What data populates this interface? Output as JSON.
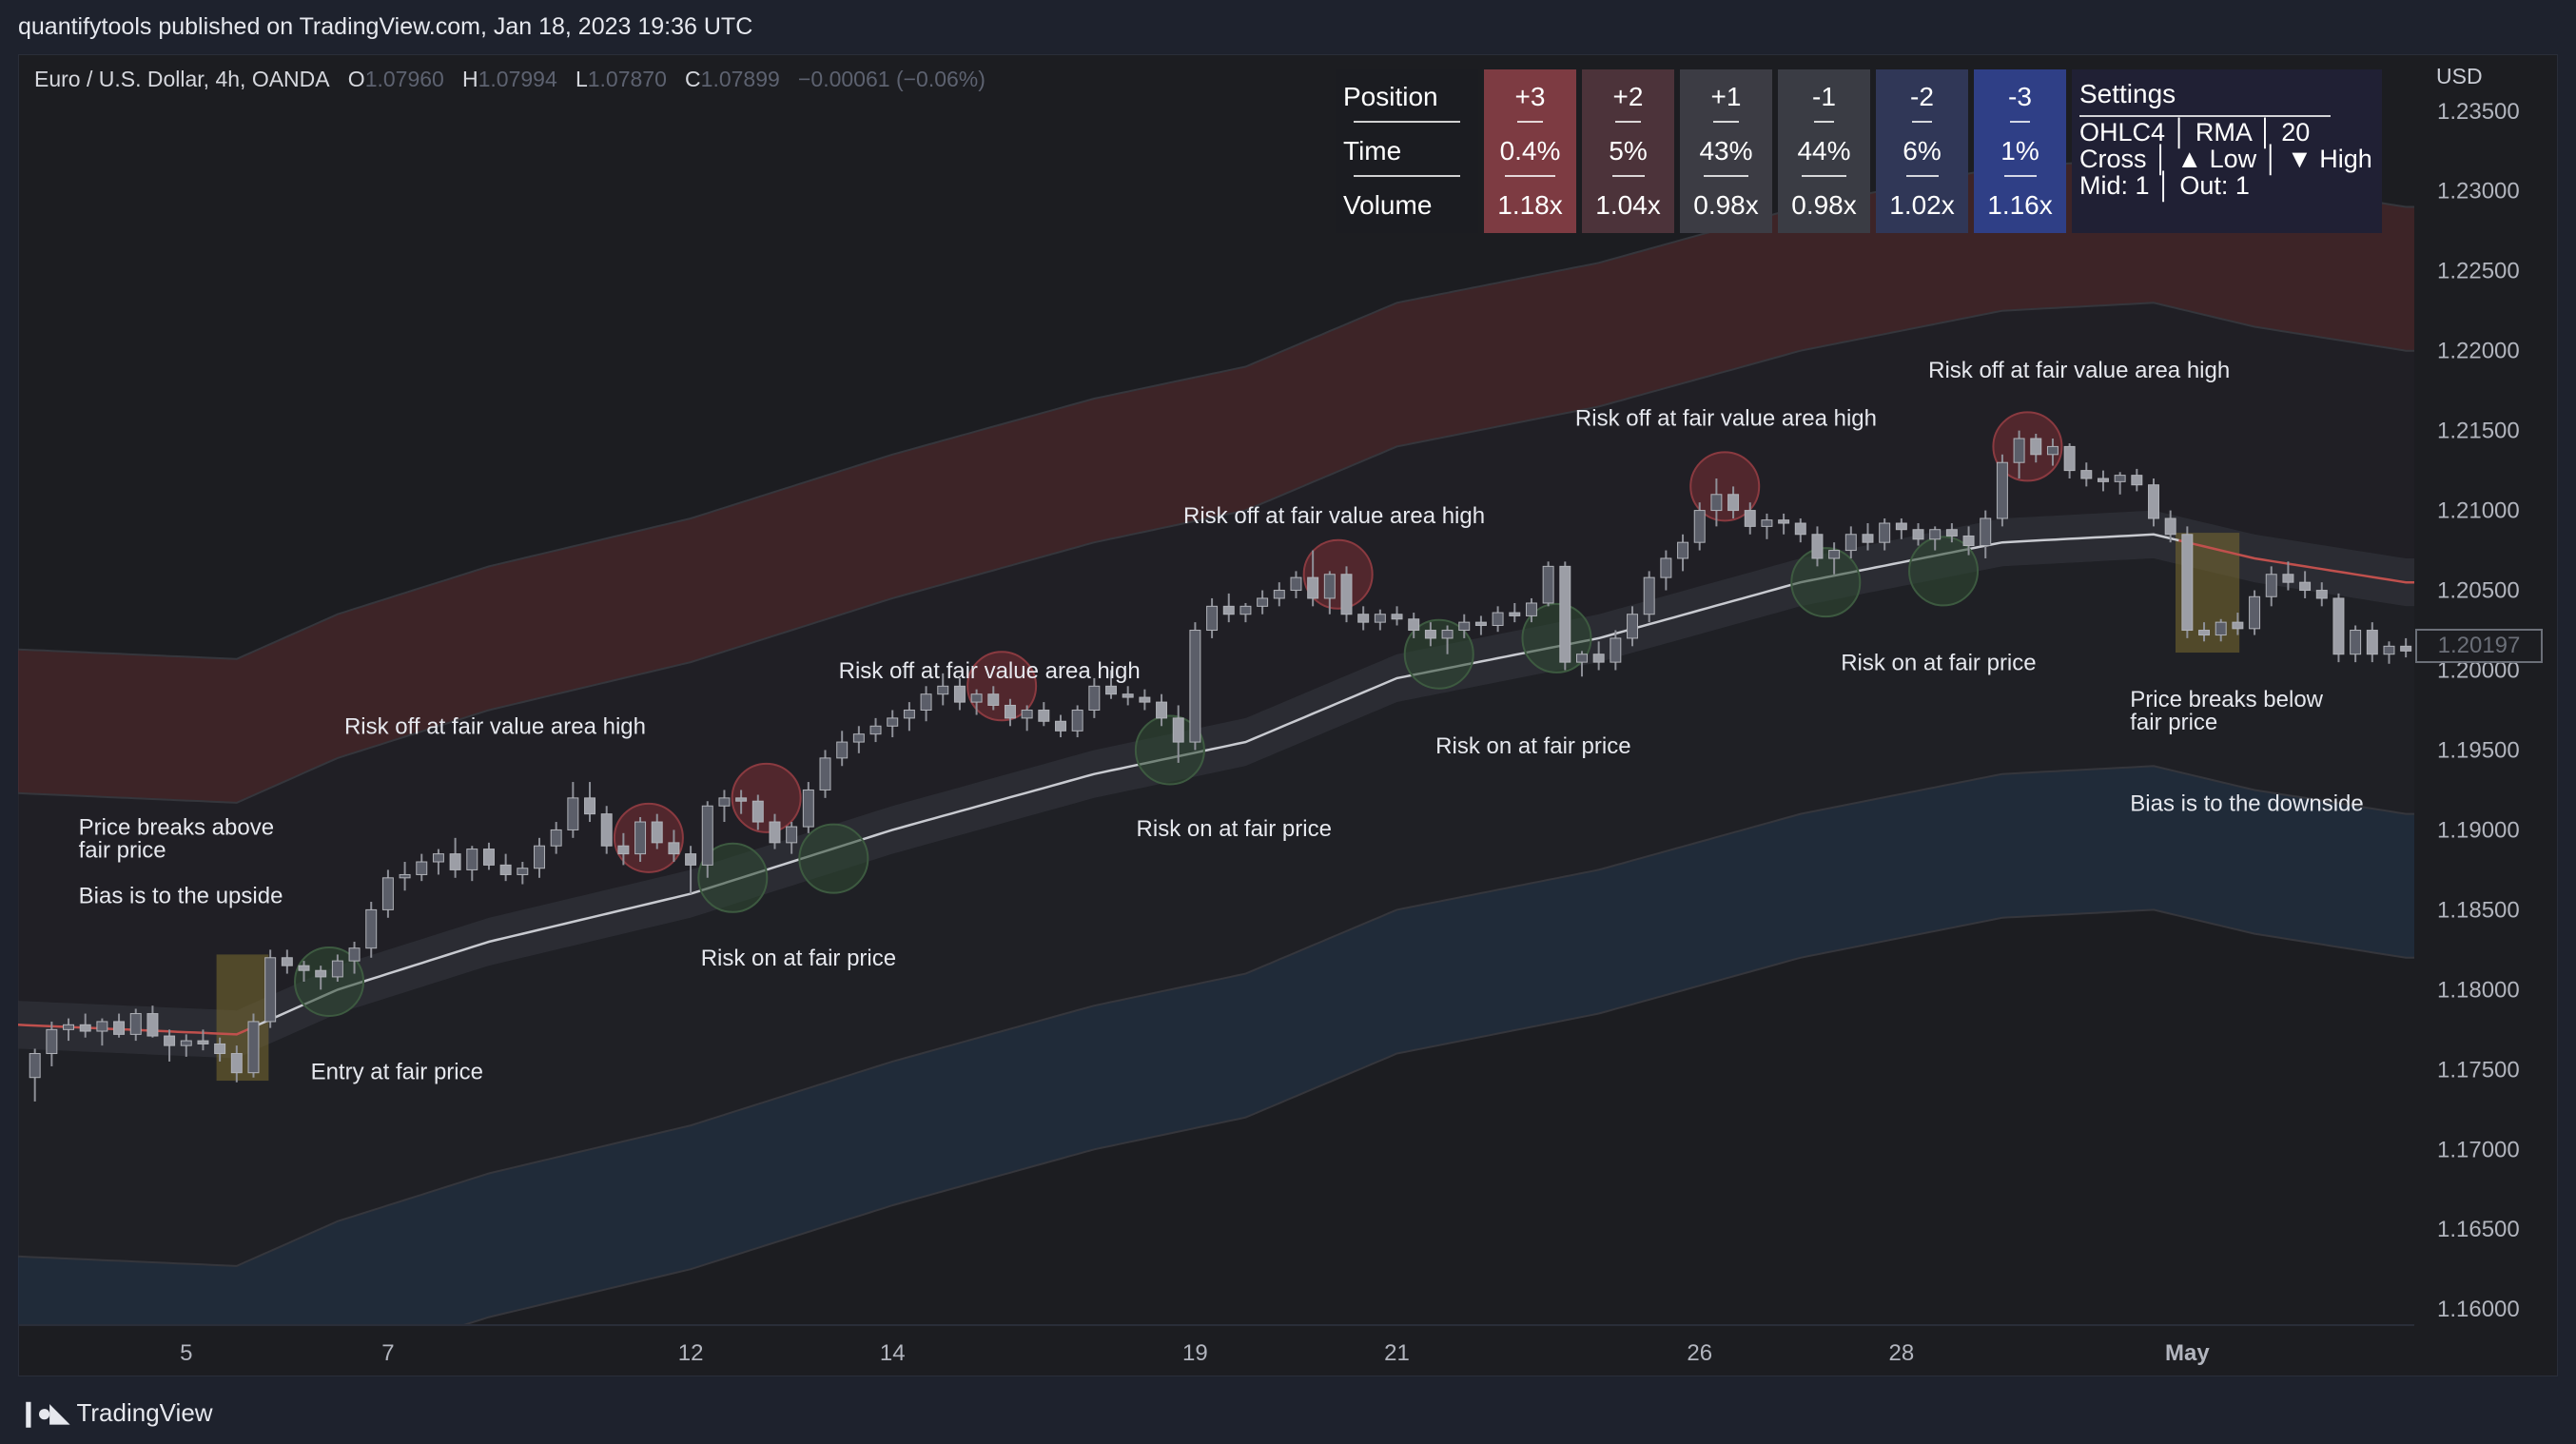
{
  "header": {
    "text": "quantifytools published on TradingView.com, Jan 18, 2023 19:36 UTC"
  },
  "legend": {
    "symbol": "Euro / U.S. Dollar, 4h, OANDA",
    "o_label": "O",
    "o_value": "1.07960",
    "h_label": "H",
    "h_value": "1.07994",
    "l_label": "L",
    "l_value": "1.07870",
    "c_label": "C",
    "c_value": "1.07899",
    "change": "−0.00061 (−0.06%)"
  },
  "currency": "USD",
  "footer": {
    "brand": "TradingView"
  },
  "stats_table": {
    "row_labels": [
      "Position",
      "Time",
      "Volume"
    ],
    "columns": [
      {
        "position": "+3",
        "time": "0.4%",
        "volume": "1.18x",
        "color": "#7d3b42"
      },
      {
        "position": "+2",
        "time": "5%",
        "volume": "1.04x",
        "color": "#4c333a"
      },
      {
        "position": "+1",
        "time": "43%",
        "volume": "0.98x",
        "color": "#3c3c44"
      },
      {
        "position": "-1",
        "time": "44%",
        "volume": "0.98x",
        "color": "#3a3c44"
      },
      {
        "position": "-2",
        "time": "6%",
        "volume": "1.02x",
        "color": "#303757"
      },
      {
        "position": "-3",
        "time": "1%",
        "volume": "1.16x",
        "color": "#2f3f86"
      }
    ],
    "settings": {
      "title": "Settings",
      "line1": "OHLC4 │ RMA │ 20",
      "line2": "Cross │ ▲ Low │ ▼ High",
      "line3": "Mid: 1 │ Out: 1"
    }
  },
  "price_tag": "1.20197",
  "chart_data": {
    "type": "candlestick",
    "title": "Euro / U.S. Dollar, 4h, OANDA",
    "ylim": [
      1.159,
      1.2385
    ],
    "y_ticks": [
      "1.16000",
      "1.16500",
      "1.17000",
      "1.17500",
      "1.18000",
      "1.18500",
      "1.19000",
      "1.19500",
      "1.20000",
      "1.20500",
      "1.21000",
      "1.21500",
      "1.22000",
      "1.22500",
      "1.23000",
      "1.23500"
    ],
    "x_ticks": [
      {
        "label": "5",
        "t": 9,
        "bold": false
      },
      {
        "label": "7",
        "t": 21,
        "bold": false
      },
      {
        "label": "12",
        "t": 39,
        "bold": false
      },
      {
        "label": "14",
        "t": 51,
        "bold": false
      },
      {
        "label": "19",
        "t": 69,
        "bold": false
      },
      {
        "label": "21",
        "t": 81,
        "bold": false
      },
      {
        "label": "26",
        "t": 99,
        "bold": false
      },
      {
        "label": "28",
        "t": 111,
        "bold": false
      },
      {
        "label": "May",
        "t": 128,
        "bold": true
      }
    ],
    "x_range": [
      -1,
      141.5
    ],
    "fair_price_anchors": [
      [
        -1,
        1.1778
      ],
      [
        12,
        1.1772
      ],
      [
        18,
        1.18
      ],
      [
        27,
        1.183
      ],
      [
        39,
        1.186
      ],
      [
        51,
        1.19
      ],
      [
        63,
        1.1935
      ],
      [
        72,
        1.1955
      ],
      [
        81,
        1.1995
      ],
      [
        93,
        1.202
      ],
      [
        105,
        1.2055
      ],
      [
        117,
        1.208
      ],
      [
        126,
        1.2085
      ],
      [
        132,
        1.207
      ],
      [
        141,
        1.2055
      ]
    ],
    "candles": [
      [
        1.1745,
        1.1763,
        1.173,
        1.176
      ],
      [
        1.176,
        1.178,
        1.1752,
        1.1775
      ],
      [
        1.1775,
        1.1782,
        1.1768,
        1.1778
      ],
      [
        1.1778,
        1.1785,
        1.177,
        1.1774
      ],
      [
        1.1774,
        1.1782,
        1.1765,
        1.178
      ],
      [
        1.178,
        1.1785,
        1.177,
        1.1772
      ],
      [
        1.1772,
        1.1788,
        1.1768,
        1.1785
      ],
      [
        1.1785,
        1.179,
        1.177,
        1.1771
      ],
      [
        1.1771,
        1.1775,
        1.1755,
        1.1765
      ],
      [
        1.1765,
        1.1772,
        1.1758,
        1.1768
      ],
      [
        1.1768,
        1.1775,
        1.1762,
        1.1766
      ],
      [
        1.1766,
        1.177,
        1.1755,
        1.176
      ],
      [
        1.176,
        1.1765,
        1.1742,
        1.1748
      ],
      [
        1.1748,
        1.1785,
        1.1745,
        1.178
      ],
      [
        1.178,
        1.1825,
        1.1776,
        1.182
      ],
      [
        1.182,
        1.1825,
        1.181,
        1.1815
      ],
      [
        1.1815,
        1.1818,
        1.1805,
        1.1812
      ],
      [
        1.1812,
        1.1815,
        1.18,
        1.1808
      ],
      [
        1.1808,
        1.1822,
        1.1805,
        1.1818
      ],
      [
        1.1818,
        1.183,
        1.181,
        1.1826
      ],
      [
        1.1826,
        1.1855,
        1.182,
        1.185
      ],
      [
        1.185,
        1.1875,
        1.1845,
        1.187
      ],
      [
        1.187,
        1.188,
        1.1862,
        1.1872
      ],
      [
        1.1872,
        1.1885,
        1.1868,
        1.188
      ],
      [
        1.188,
        1.1888,
        1.1872,
        1.1885
      ],
      [
        1.1885,
        1.1895,
        1.187,
        1.1875
      ],
      [
        1.1875,
        1.189,
        1.1868,
        1.1888
      ],
      [
        1.1888,
        1.1892,
        1.1875,
        1.1878
      ],
      [
        1.1878,
        1.1885,
        1.1868,
        1.1872
      ],
      [
        1.1872,
        1.188,
        1.1866,
        1.1876
      ],
      [
        1.1876,
        1.1895,
        1.187,
        1.189
      ],
      [
        1.189,
        1.1905,
        1.1885,
        1.19
      ],
      [
        1.19,
        1.193,
        1.1895,
        1.192
      ],
      [
        1.192,
        1.193,
        1.1905,
        1.191
      ],
      [
        1.191,
        1.1915,
        1.1885,
        1.189
      ],
      [
        1.189,
        1.1898,
        1.1878,
        1.1885
      ],
      [
        1.1885,
        1.1908,
        1.188,
        1.1905
      ],
      [
        1.1905,
        1.191,
        1.1888,
        1.1892
      ],
      [
        1.1892,
        1.19,
        1.188,
        1.1885
      ],
      [
        1.1885,
        1.189,
        1.186,
        1.1878
      ],
      [
        1.1878,
        1.1918,
        1.187,
        1.1915
      ],
      [
        1.1915,
        1.1925,
        1.1905,
        1.192
      ],
      [
        1.192,
        1.1925,
        1.191,
        1.1918
      ],
      [
        1.1918,
        1.1922,
        1.19,
        1.1905
      ],
      [
        1.1905,
        1.191,
        1.1888,
        1.1892
      ],
      [
        1.1892,
        1.1905,
        1.1885,
        1.1902
      ],
      [
        1.1902,
        1.193,
        1.1898,
        1.1925
      ],
      [
        1.1925,
        1.195,
        1.192,
        1.1945
      ],
      [
        1.1945,
        1.1962,
        1.194,
        1.1955
      ],
      [
        1.1955,
        1.1965,
        1.1948,
        1.196
      ],
      [
        1.196,
        1.197,
        1.1955,
        1.1965
      ],
      [
        1.1965,
        1.1975,
        1.1958,
        1.197
      ],
      [
        1.197,
        1.198,
        1.1962,
        1.1975
      ],
      [
        1.1975,
        1.199,
        1.1968,
        1.1985
      ],
      [
        1.1985,
        1.1998,
        1.1978,
        1.199
      ],
      [
        1.199,
        1.1995,
        1.1975,
        1.198
      ],
      [
        1.198,
        1.1988,
        1.1972,
        1.1985
      ],
      [
        1.1985,
        1.199,
        1.1975,
        1.1978
      ],
      [
        1.1978,
        1.1982,
        1.1965,
        1.197
      ],
      [
        1.197,
        1.1978,
        1.1962,
        1.1975
      ],
      [
        1.1975,
        1.198,
        1.1965,
        1.1968
      ],
      [
        1.1968,
        1.1972,
        1.1958,
        1.1962
      ],
      [
        1.1962,
        1.1978,
        1.1958,
        1.1975
      ],
      [
        1.1975,
        1.1995,
        1.197,
        1.199
      ],
      [
        1.199,
        1.2,
        1.1982,
        1.1985
      ],
      [
        1.1985,
        1.199,
        1.1978,
        1.1983
      ],
      [
        1.1983,
        1.1988,
        1.1975,
        1.198
      ],
      [
        1.198,
        1.1985,
        1.1965,
        1.197
      ],
      [
        1.197,
        1.1978,
        1.1942,
        1.1955
      ],
      [
        1.1955,
        1.203,
        1.195,
        1.2025
      ],
      [
        1.2025,
        1.2045,
        1.202,
        1.204
      ],
      [
        1.204,
        1.2048,
        1.203,
        1.2035
      ],
      [
        1.2035,
        1.2042,
        1.203,
        1.204
      ],
      [
        1.204,
        1.205,
        1.2035,
        1.2045
      ],
      [
        1.2045,
        1.2055,
        1.204,
        1.205
      ],
      [
        1.205,
        1.2062,
        1.2045,
        1.2058
      ],
      [
        1.2058,
        1.2075,
        1.204,
        1.2045
      ],
      [
        1.2045,
        1.2062,
        1.2035,
        1.206
      ],
      [
        1.206,
        1.2065,
        1.203,
        1.2035
      ],
      [
        1.2035,
        1.204,
        1.2025,
        1.203
      ],
      [
        1.203,
        1.2038,
        1.2025,
        1.2035
      ],
      [
        1.2035,
        1.204,
        1.2028,
        1.2032
      ],
      [
        1.2032,
        1.2036,
        1.202,
        1.2025
      ],
      [
        1.2025,
        1.203,
        1.2015,
        1.202
      ],
      [
        1.202,
        1.2028,
        1.201,
        1.2025
      ],
      [
        1.2025,
        1.2035,
        1.202,
        1.203
      ],
      [
        1.203,
        1.2034,
        1.2022,
        1.2028
      ],
      [
        1.2028,
        1.204,
        1.2024,
        1.2036
      ],
      [
        1.2036,
        1.2042,
        1.203,
        1.2034
      ],
      [
        1.2034,
        1.2045,
        1.203,
        1.2042
      ],
      [
        1.2042,
        1.2068,
        1.204,
        1.2065
      ],
      [
        1.2065,
        1.2068,
        1.2,
        1.2005
      ],
      [
        1.2005,
        1.2012,
        1.1996,
        1.201
      ],
      [
        1.201,
        1.2018,
        1.2,
        1.2005
      ],
      [
        1.2005,
        1.2025,
        1.2,
        1.202
      ],
      [
        1.202,
        1.204,
        1.2015,
        1.2035
      ],
      [
        1.2035,
        1.2062,
        1.203,
        1.2058
      ],
      [
        1.2058,
        1.2075,
        1.205,
        1.207
      ],
      [
        1.207,
        1.2085,
        1.2062,
        1.208
      ],
      [
        1.208,
        1.2105,
        1.2075,
        1.21
      ],
      [
        1.21,
        1.212,
        1.209,
        1.211
      ],
      [
        1.211,
        1.2115,
        1.2095,
        1.21
      ],
      [
        1.21,
        1.2105,
        1.2085,
        1.209
      ],
      [
        1.209,
        1.2098,
        1.2082,
        1.2094
      ],
      [
        1.2094,
        1.2098,
        1.2085,
        1.2092
      ],
      [
        1.2092,
        1.2095,
        1.208,
        1.2085
      ],
      [
        1.2085,
        1.209,
        1.2065,
        1.207
      ],
      [
        1.207,
        1.208,
        1.206,
        1.2075
      ],
      [
        1.2075,
        1.209,
        1.207,
        1.2085
      ],
      [
        1.2085,
        1.2092,
        1.2075,
        1.208
      ],
      [
        1.208,
        1.2095,
        1.2075,
        1.2092
      ],
      [
        1.2092,
        1.2095,
        1.2082,
        1.2088
      ],
      [
        1.2088,
        1.2092,
        1.2078,
        1.2082
      ],
      [
        1.2082,
        1.209,
        1.2075,
        1.2088
      ],
      [
        1.2088,
        1.2092,
        1.208,
        1.2084
      ],
      [
        1.2084,
        1.209,
        1.2072,
        1.2078
      ],
      [
        1.2078,
        1.21,
        1.207,
        1.2095
      ],
      [
        1.2095,
        1.2135,
        1.209,
        1.213
      ],
      [
        1.213,
        1.215,
        1.212,
        1.2145
      ],
      [
        1.2145,
        1.2148,
        1.213,
        1.2135
      ],
      [
        1.2135,
        1.2145,
        1.2128,
        1.214
      ],
      [
        1.214,
        1.2142,
        1.212,
        1.2125
      ],
      [
        1.2125,
        1.213,
        1.2115,
        1.212
      ],
      [
        1.212,
        1.2125,
        1.2112,
        1.2118
      ],
      [
        1.2118,
        1.2124,
        1.211,
        1.2122
      ],
      [
        1.2122,
        1.2126,
        1.2112,
        1.2116
      ],
      [
        1.2116,
        1.212,
        1.209,
        1.2095
      ],
      [
        1.2095,
        1.21,
        1.208,
        1.2085
      ],
      [
        1.2085,
        1.209,
        1.202,
        1.2025
      ],
      [
        1.2025,
        1.203,
        1.2018,
        1.2022
      ],
      [
        1.2022,
        1.2032,
        1.2018,
        1.203
      ],
      [
        1.203,
        1.2036,
        1.2022,
        1.2026
      ],
      [
        1.2026,
        1.205,
        1.2022,
        1.2046
      ],
      [
        1.2046,
        1.2065,
        1.204,
        1.206
      ],
      [
        1.206,
        1.2068,
        1.205,
        1.2055
      ],
      [
        1.2055,
        1.2062,
        1.2045,
        1.205
      ],
      [
        1.205,
        1.2055,
        1.204,
        1.2045
      ],
      [
        1.2045,
        1.2048,
        1.2005,
        1.201
      ],
      [
        1.201,
        1.2028,
        1.2005,
        1.2025
      ],
      [
        1.2025,
        1.203,
        1.2005,
        1.201
      ],
      [
        1.201,
        1.2018,
        1.2004,
        1.2015
      ],
      [
        1.2015,
        1.202,
        1.2008,
        1.2012
      ],
      [
        1.2012,
        1.2022,
        1.2008,
        1.2018
      ]
    ],
    "signals": [
      {
        "type": "risk_off",
        "t": 36.5,
        "p": 1.1895
      },
      {
        "type": "risk_off",
        "t": 43.5,
        "p": 1.192
      },
      {
        "type": "risk_off",
        "t": 57.5,
        "p": 1.199
      },
      {
        "type": "risk_off",
        "t": 77.5,
        "p": 1.206
      },
      {
        "type": "risk_off",
        "t": 100.5,
        "p": 1.2115
      },
      {
        "type": "risk_off",
        "t": 118.5,
        "p": 1.214
      },
      {
        "type": "risk_on",
        "t": 17.5,
        "p": 1.1805
      },
      {
        "type": "risk_on",
        "t": 41.5,
        "p": 1.187
      },
      {
        "type": "risk_on",
        "t": 47.5,
        "p": 1.1882
      },
      {
        "type": "risk_on",
        "t": 67.5,
        "p": 1.195
      },
      {
        "type": "risk_on",
        "t": 83.5,
        "p": 1.201
      },
      {
        "type": "risk_on",
        "t": 90.5,
        "p": 1.202
      },
      {
        "type": "risk_on",
        "t": 106.5,
        "p": 1.2055
      },
      {
        "type": "risk_on",
        "t": 113.5,
        "p": 1.2062
      }
    ],
    "highlight_zones": [
      {
        "t0": 10.8,
        "t1": 13.9,
        "p0": 1.1743,
        "p1": 1.1822
      },
      {
        "t0": 127.3,
        "t1": 131.1,
        "p0": 1.2011,
        "p1": 1.2086
      }
    ],
    "annotations": [
      {
        "lines": [
          "Price breaks above",
          "fair price"
        ],
        "t": 2.6,
        "p": 1.1897
      },
      {
        "lines": [
          "Bias is to the upside"
        ],
        "t": 2.6,
        "p": 1.1854
      },
      {
        "lines": [
          "Entry at fair price"
        ],
        "t": 16.4,
        "p": 1.1744
      },
      {
        "lines": [
          "Risk off at fair value area high"
        ],
        "t": 18.4,
        "p": 1.196
      },
      {
        "lines": [
          "Risk off at fair value area high"
        ],
        "t": 47.8,
        "p": 2.0
      },
      {
        "lines": [
          "Risk on at fair price"
        ],
        "t": 39.6,
        "p": 1.1815
      },
      {
        "lines": [
          "Risk off at fair value area high"
        ],
        "t": 68.3,
        "p": 1.2092
      },
      {
        "lines": [
          "Risk on at fair price"
        ],
        "t": 65.5,
        "p": 1.1896
      },
      {
        "lines": [
          "Risk on at fair price"
        ],
        "t": 83.3,
        "p": 1.1948
      },
      {
        "lines": [
          "Risk off at fair value area high"
        ],
        "t": 91.6,
        "p": 1.2153
      },
      {
        "lines": [
          "Risk on at fair price"
        ],
        "t": 107.4,
        "p": 1.2
      },
      {
        "lines": [
          "Risk off at fair value area high"
        ],
        "t": 112.6,
        "p": 1.2183
      },
      {
        "lines": [
          "Price breaks below",
          "fair price"
        ],
        "t": 124.6,
        "p": 1.1977
      },
      {
        "lines": [
          "Bias is to the downside"
        ],
        "t": 124.6,
        "p": 1.1912
      }
    ],
    "grid": false,
    "series": [
      {
        "name": "fair price",
        "color_above": "#9a9ca4",
        "color_below": "#c0504d"
      }
    ]
  }
}
